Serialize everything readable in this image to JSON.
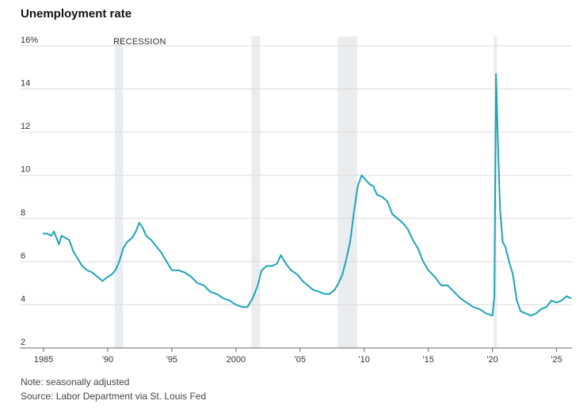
{
  "chart_data": {
    "type": "line",
    "title": "Unemployment rate",
    "ylabel": "",
    "xlabel": "",
    "ylim": [
      2,
      16
    ],
    "xlim": [
      1985,
      2026.2
    ],
    "y_ticks": [
      2,
      4,
      6,
      8,
      10,
      12,
      14,
      16
    ],
    "y_tick_labels": [
      "2",
      "4",
      "6",
      "8",
      "10",
      "12",
      "14",
      "16%"
    ],
    "x_ticks": [
      1985,
      1990,
      1995,
      2000,
      2005,
      2010,
      2015,
      2020,
      2025
    ],
    "x_tick_labels": [
      "1985",
      "'90",
      "'95",
      "2000",
      "'05",
      "'10",
      "'15",
      "'20",
      "'25"
    ],
    "grid": "horizontal",
    "line_color": "#1fa3b8",
    "recession_color": "#eaedf0",
    "recession_label": "RECESSION",
    "recessions": [
      {
        "start": 1990.55,
        "end": 1991.2
      },
      {
        "start": 2001.2,
        "end": 2001.9
      },
      {
        "start": 2007.95,
        "end": 2009.45
      },
      {
        "start": 2020.1,
        "end": 2020.35
      }
    ],
    "series": [
      {
        "values": [
          [
            1985.0,
            7.3
          ],
          [
            1985.3,
            7.3
          ],
          [
            1985.6,
            7.2
          ],
          [
            1985.8,
            7.4
          ],
          [
            1986.0,
            7.1
          ],
          [
            1986.2,
            6.8
          ],
          [
            1986.4,
            7.2
          ],
          [
            1986.7,
            7.1
          ],
          [
            1987.0,
            7.0
          ],
          [
            1987.3,
            6.5
          ],
          [
            1987.6,
            6.2
          ],
          [
            1988.0,
            5.8
          ],
          [
            1988.4,
            5.6
          ],
          [
            1988.8,
            5.5
          ],
          [
            1989.2,
            5.3
          ],
          [
            1989.6,
            5.1
          ],
          [
            1990.0,
            5.3
          ],
          [
            1990.3,
            5.4
          ],
          [
            1990.6,
            5.6
          ],
          [
            1990.9,
            6.0
          ],
          [
            1991.2,
            6.6
          ],
          [
            1991.5,
            6.9
          ],
          [
            1991.9,
            7.1
          ],
          [
            1992.2,
            7.4
          ],
          [
            1992.45,
            7.8
          ],
          [
            1992.7,
            7.6
          ],
          [
            1993.0,
            7.2
          ],
          [
            1993.4,
            7.0
          ],
          [
            1993.8,
            6.7
          ],
          [
            1994.2,
            6.4
          ],
          [
            1994.6,
            6.0
          ],
          [
            1995.0,
            5.6
          ],
          [
            1995.5,
            5.6
          ],
          [
            1996.0,
            5.5
          ],
          [
            1996.5,
            5.3
          ],
          [
            1997.0,
            5.0
          ],
          [
            1997.5,
            4.9
          ],
          [
            1998.0,
            4.6
          ],
          [
            1998.5,
            4.5
          ],
          [
            1999.0,
            4.3
          ],
          [
            1999.5,
            4.2
          ],
          [
            2000.0,
            4.0
          ],
          [
            2000.5,
            3.9
          ],
          [
            2000.9,
            3.9
          ],
          [
            2001.3,
            4.3
          ],
          [
            2001.7,
            4.9
          ],
          [
            2002.0,
            5.6
          ],
          [
            2002.4,
            5.8
          ],
          [
            2002.8,
            5.8
          ],
          [
            2003.2,
            5.9
          ],
          [
            2003.5,
            6.3
          ],
          [
            2003.9,
            5.9
          ],
          [
            2004.3,
            5.6
          ],
          [
            2004.8,
            5.4
          ],
          [
            2005.2,
            5.1
          ],
          [
            2005.6,
            4.9
          ],
          [
            2006.0,
            4.7
          ],
          [
            2006.5,
            4.6
          ],
          [
            2006.9,
            4.5
          ],
          [
            2007.3,
            4.5
          ],
          [
            2007.7,
            4.7
          ],
          [
            2008.0,
            5.0
          ],
          [
            2008.3,
            5.4
          ],
          [
            2008.6,
            6.1
          ],
          [
            2008.9,
            6.9
          ],
          [
            2009.2,
            8.3
          ],
          [
            2009.5,
            9.5
          ],
          [
            2009.8,
            10.0
          ],
          [
            2010.1,
            9.8
          ],
          [
            2010.4,
            9.6
          ],
          [
            2010.7,
            9.5
          ],
          [
            2011.0,
            9.1
          ],
          [
            2011.4,
            9.0
          ],
          [
            2011.8,
            8.8
          ],
          [
            2012.2,
            8.2
          ],
          [
            2012.6,
            8.0
          ],
          [
            2013.0,
            7.8
          ],
          [
            2013.4,
            7.5
          ],
          [
            2013.8,
            7.0
          ],
          [
            2014.2,
            6.6
          ],
          [
            2014.6,
            6.0
          ],
          [
            2015.0,
            5.6
          ],
          [
            2015.5,
            5.3
          ],
          [
            2016.0,
            4.9
          ],
          [
            2016.5,
            4.9
          ],
          [
            2017.0,
            4.6
          ],
          [
            2017.5,
            4.3
          ],
          [
            2018.0,
            4.1
          ],
          [
            2018.5,
            3.9
          ],
          [
            2019.0,
            3.8
          ],
          [
            2019.5,
            3.6
          ],
          [
            2020.0,
            3.5
          ],
          [
            2020.15,
            4.4
          ],
          [
            2020.28,
            14.7
          ],
          [
            2020.45,
            11.1
          ],
          [
            2020.6,
            8.4
          ],
          [
            2020.8,
            6.9
          ],
          [
            2021.0,
            6.7
          ],
          [
            2021.3,
            6.0
          ],
          [
            2021.6,
            5.4
          ],
          [
            2021.9,
            4.2
          ],
          [
            2022.2,
            3.7
          ],
          [
            2022.6,
            3.6
          ],
          [
            2023.0,
            3.5
          ],
          [
            2023.4,
            3.6
          ],
          [
            2023.8,
            3.8
          ],
          [
            2024.2,
            3.9
          ],
          [
            2024.6,
            4.2
          ],
          [
            2025.0,
            4.1
          ],
          [
            2025.4,
            4.2
          ],
          [
            2025.8,
            4.4
          ],
          [
            2026.1,
            4.3
          ]
        ]
      }
    ]
  },
  "notes": {
    "line1": "Note: seasonally adjusted",
    "line2": "Source: Labor Department via St. Louis Fed"
  }
}
